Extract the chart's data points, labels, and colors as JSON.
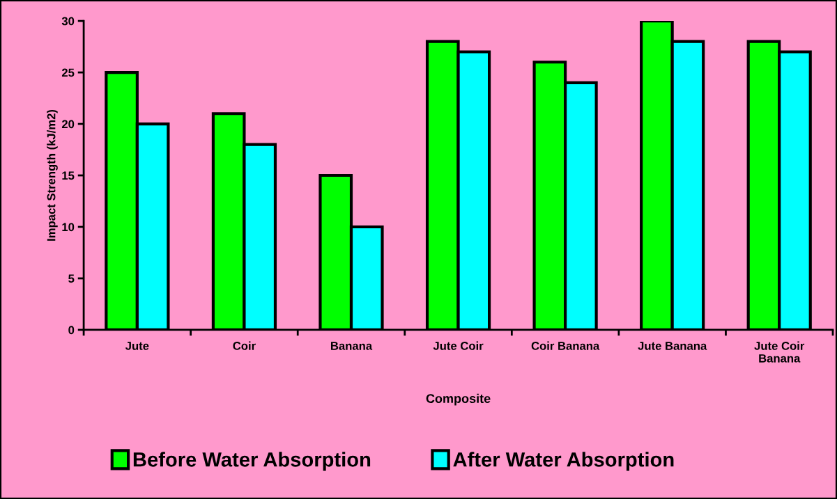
{
  "chart_data": {
    "type": "bar",
    "xlabel": "Composite",
    "ylabel": "Impact Strength (kJ/m2)",
    "categories": [
      "Jute",
      "Coir",
      "Banana",
      "Jute Coir",
      "Coir Banana",
      "Jute Banana",
      "Jute Coir Banana"
    ],
    "series": [
      {
        "name": "Before Water Absorption",
        "color": "#00ff00",
        "values": [
          25,
          21,
          15,
          28,
          26,
          30,
          28
        ]
      },
      {
        "name": "After Water Absorption",
        "color": "#00ffff",
        "values": [
          20,
          18,
          10,
          27,
          24,
          28,
          27
        ]
      }
    ],
    "ylim": [
      0,
      30
    ],
    "yticks": [
      0,
      5,
      10,
      15,
      20,
      25,
      30
    ],
    "grid": false,
    "legend": "bottom"
  }
}
